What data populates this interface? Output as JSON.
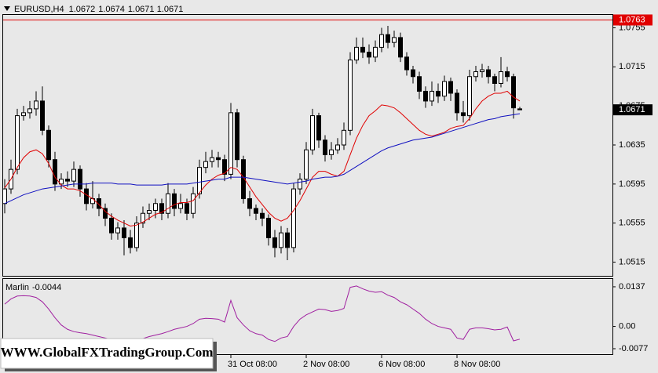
{
  "chart_data": [
    {
      "type": "candlestick",
      "symbol": "EURUSD,H4",
      "categories": [
        null,
        null,
        null,
        null,
        null,
        null,
        null,
        null,
        null,
        null,
        null,
        null,
        null,
        null,
        null,
        null,
        null,
        null,
        null,
        null,
        null,
        null,
        null,
        null,
        null,
        null,
        null,
        null,
        null,
        null,
        null,
        null,
        null,
        null,
        null,
        null,
        "31 Oct 08:00",
        null,
        null,
        null,
        null,
        null,
        null,
        null,
        null,
        null,
        null,
        null,
        "2 Nov 08:00",
        null,
        null,
        null,
        null,
        null,
        null,
        null,
        null,
        null,
        null,
        null,
        "6 Nov 08:00",
        null,
        null,
        null,
        null,
        null,
        null,
        null,
        null,
        null,
        null,
        null,
        "8 Nov 08:00",
        null,
        null,
        null,
        null,
        null,
        null,
        null,
        null,
        null,
        null
      ],
      "open": [
        1.0575,
        1.059,
        1.061,
        1.0665,
        1.0668,
        1.0672,
        1.068,
        1.065,
        1.062,
        1.0595,
        1.06,
        1.0598,
        1.061,
        1.059,
        1.0575,
        1.058,
        1.057,
        1.056,
        1.0545,
        1.055,
        1.054,
        1.053,
        1.0555,
        1.0565,
        1.0568,
        1.0575,
        1.0565,
        1.0585,
        1.057,
        1.0575,
        1.0565,
        1.0585,
        1.0612,
        1.0618,
        1.0622,
        1.062,
        1.0605,
        1.0668,
        1.062,
        1.058,
        1.057,
        1.0565,
        1.056,
        1.054,
        1.053,
        1.0545,
        1.053,
        1.059,
        1.06,
        1.063,
        1.0665,
        1.064,
        1.0625,
        1.063,
        1.0635,
        1.065,
        1.0722,
        1.0735,
        1.073,
        1.0725,
        1.0735,
        1.0748,
        1.074,
        1.0745,
        1.0725,
        1.0712,
        1.0705,
        1.069,
        1.068,
        1.069,
        1.0685,
        1.07,
        1.0688,
        1.0668,
        1.0665,
        1.0705,
        1.071,
        1.0712,
        1.0705,
        1.0698,
        1.071,
        1.0705,
        1.0672
      ],
      "high": [
        1.06,
        1.062,
        1.0672,
        1.0675,
        1.068,
        1.069,
        1.0695,
        1.0655,
        1.0628,
        1.0606,
        1.0608,
        1.0618,
        1.0614,
        1.0596,
        1.0598,
        1.0585,
        1.0575,
        1.0565,
        1.0556,
        1.0558,
        1.0548,
        1.0562,
        1.0572,
        1.0575,
        1.058,
        1.058,
        1.0596,
        1.059,
        1.0585,
        1.058,
        1.0592,
        1.062,
        1.0628,
        1.063,
        1.0628,
        1.0625,
        1.0678,
        1.0672,
        1.0624,
        1.0588,
        1.0574,
        1.057,
        1.0564,
        1.0548,
        1.0552,
        1.055,
        1.0596,
        1.0606,
        1.0638,
        1.0672,
        1.0668,
        1.0645,
        1.0638,
        1.0642,
        1.0658,
        1.073,
        1.0745,
        1.0745,
        1.0738,
        1.0742,
        1.0755,
        1.0757,
        1.0752,
        1.075,
        1.073,
        1.0716,
        1.071,
        1.0695,
        1.07,
        1.0698,
        1.0706,
        1.0704,
        1.0692,
        1.068,
        1.0712,
        1.0716,
        1.0718,
        1.0716,
        1.0708,
        1.0725,
        1.0715,
        1.0708,
        1.0674
      ],
      "low": [
        1.0565,
        1.0585,
        1.0605,
        1.066,
        1.0662,
        1.0665,
        1.0645,
        1.0612,
        1.0588,
        1.059,
        1.0592,
        1.0592,
        1.0582,
        1.0568,
        1.057,
        1.0562,
        1.0552,
        1.0538,
        1.0538,
        1.0522,
        1.0524,
        1.0526,
        1.055,
        1.0558,
        1.056,
        1.0558,
        1.056,
        1.0562,
        1.0565,
        1.0558,
        1.056,
        1.058,
        1.0606,
        1.0612,
        1.0612,
        1.0598,
        1.06,
        1.0612,
        1.0575,
        1.0562,
        1.0558,
        1.0552,
        1.0532,
        1.052,
        1.0524,
        1.0517,
        1.0525,
        1.0584,
        1.0595,
        1.0625,
        1.0632,
        1.0618,
        1.062,
        1.0626,
        1.063,
        1.0645,
        1.0718,
        1.0724,
        1.0718,
        1.072,
        1.073,
        1.0734,
        1.0735,
        1.072,
        1.0706,
        1.0698,
        1.0682,
        1.0673,
        1.0675,
        1.0678,
        1.068,
        1.068,
        1.066,
        1.0658,
        1.066,
        1.07,
        1.0704,
        1.0698,
        1.069,
        1.0694,
        1.07,
        1.0662,
        1.0671
      ],
      "close": [
        1.059,
        1.061,
        1.0665,
        1.0668,
        1.0672,
        1.068,
        1.065,
        1.062,
        1.0595,
        1.06,
        1.0598,
        1.061,
        1.059,
        1.0575,
        1.058,
        1.057,
        1.056,
        1.0545,
        1.055,
        1.054,
        1.053,
        1.0555,
        1.0565,
        1.0568,
        1.0575,
        1.0565,
        1.0585,
        1.057,
        1.0575,
        1.0565,
        1.0585,
        1.0612,
        1.0618,
        1.0622,
        1.062,
        1.0605,
        1.0668,
        1.062,
        1.058,
        1.057,
        1.0565,
        1.056,
        1.054,
        1.053,
        1.0545,
        1.053,
        1.059,
        1.06,
        1.063,
        1.0665,
        1.064,
        1.0625,
        1.063,
        1.0635,
        1.065,
        1.0722,
        1.0735,
        1.073,
        1.0725,
        1.0735,
        1.0748,
        1.074,
        1.0745,
        1.0725,
        1.0712,
        1.0705,
        1.069,
        1.068,
        1.069,
        1.0685,
        1.07,
        1.0688,
        1.0668,
        1.0665,
        1.0705,
        1.071,
        1.0712,
        1.0705,
        1.0698,
        1.071,
        1.0705,
        1.0673,
        1.0671
      ],
      "series": [
        {
          "color": "#e00000",
          "values": [
            1.0591,
            1.06,
            1.0612,
            1.0622,
            1.0628,
            1.063,
            1.0626,
            1.0616,
            1.0602,
            1.0594,
            1.059,
            1.059,
            1.0588,
            1.0584,
            1.058,
            1.0574,
            1.0567,
            1.0562,
            1.0558,
            1.0555,
            1.0552,
            1.0553,
            1.0556,
            1.056,
            1.0564,
            1.0566,
            1.057,
            1.0574,
            1.0576,
            1.0576,
            1.0578,
            1.0586,
            1.0594,
            1.06,
            1.0604,
            1.0606,
            1.0612,
            1.061,
            1.0602,
            1.0592,
            1.0582,
            1.0574,
            1.0566,
            1.056,
            1.0557,
            1.056,
            1.0568,
            1.0578,
            1.059,
            1.0602,
            1.0608,
            1.0608,
            1.0605,
            1.0603,
            1.0608,
            1.0625,
            1.0642,
            1.0655,
            1.0665,
            1.067,
            1.0676,
            1.0675,
            1.0673,
            1.0668,
            1.0662,
            1.0656,
            1.065,
            1.0646,
            1.0644,
            1.0646,
            1.0648,
            1.0652,
            1.0654,
            1.0655,
            1.0662,
            1.0672,
            1.068,
            1.0685,
            1.0688,
            1.0688,
            1.069,
            1.0684,
            1.068
          ]
        },
        {
          "color": "#1010c0",
          "values": [
            1.0575,
            1.0578,
            1.0581,
            1.0584,
            1.0586,
            1.0588,
            1.059,
            1.0591,
            1.0592,
            1.0593,
            1.0594,
            1.0595,
            1.0595,
            1.0595,
            1.0596,
            1.0596,
            1.0596,
            1.0596,
            1.0595,
            1.0595,
            1.0595,
            1.0594,
            1.0594,
            1.0594,
            1.0594,
            1.0594,
            1.0595,
            1.0595,
            1.0595,
            1.0595,
            1.0596,
            1.0597,
            1.0598,
            1.0599,
            1.06,
            1.06,
            1.0602,
            1.0602,
            1.0602,
            1.0601,
            1.06,
            1.0599,
            1.0598,
            1.0597,
            1.0596,
            1.0595,
            1.0596,
            1.0597,
            1.0598,
            1.06,
            1.0601,
            1.0602,
            1.0602,
            1.0603,
            1.0605,
            1.0609,
            1.0613,
            1.0617,
            1.0621,
            1.0625,
            1.0629,
            1.0632,
            1.0634,
            1.0636,
            1.0638,
            1.064,
            1.0641,
            1.0642,
            1.0643,
            1.0645,
            1.0647,
            1.0649,
            1.0651,
            1.0653,
            1.0655,
            1.0657,
            1.0659,
            1.0661,
            1.0662,
            1.0664,
            1.0665,
            1.0666,
            1.0667
          ]
        }
      ],
      "level": {
        "value": 1.0763,
        "color": "#e00000"
      },
      "ylim": [
        1.0501,
        1.0769
      ],
      "yticks": [
        1.0755,
        1.0715,
        1.0675,
        1.0635,
        1.0595,
        1.0555,
        1.0515
      ],
      "grid": false
    },
    {
      "type": "line",
      "series": [
        {
          "name": "Marlin",
          "color": "#a020a0",
          "values": [
            0.0077,
            0.0095,
            0.0105,
            0.0106,
            0.0105,
            0.01,
            0.0085,
            0.006,
            0.003,
            0.0005,
            -0.001,
            -0.0018,
            -0.0022,
            -0.0025,
            -0.003,
            -0.0035,
            -0.004,
            -0.0045,
            -0.0048,
            -0.005,
            -0.0052,
            -0.0048,
            -0.0042,
            -0.0035,
            -0.003,
            -0.0025,
            -0.0018,
            -0.001,
            -0.0005,
            0,
            0.001,
            0.0025,
            0.0028,
            0.0027,
            0.0025,
            0.0015,
            0.009,
            0.003,
            0.0005,
            -0.0015,
            -0.0025,
            -0.003,
            -0.0045,
            -0.0052,
            -0.004,
            -0.0035,
            0,
            0.0025,
            0.004,
            0.005,
            0.006,
            0.0058,
            0.0052,
            0.0055,
            0.0062,
            0.0135,
            0.014,
            0.013,
            0.0122,
            0.0118,
            0.012,
            0.0108,
            0.01,
            0.0085,
            0.0075,
            0.006,
            0.0045,
            0.0025,
            0.001,
            0,
            -0.0005,
            -0.001,
            -0.004,
            -0.0045,
            -0.001,
            -0.0005,
            -0.0005,
            -0.0008,
            -0.0012,
            -0.001,
            -0.0002,
            -0.005,
            -0.0044
          ]
        }
      ],
      "ylim": [
        -0.0096,
        0.0164
      ],
      "yticks": [
        0.0137,
        {
          "value": 0,
          "label": "0.00"
        },
        -0.0077
      ]
    }
  ],
  "watermark": "WWW.GlobalFXTradingGroup.Com"
}
